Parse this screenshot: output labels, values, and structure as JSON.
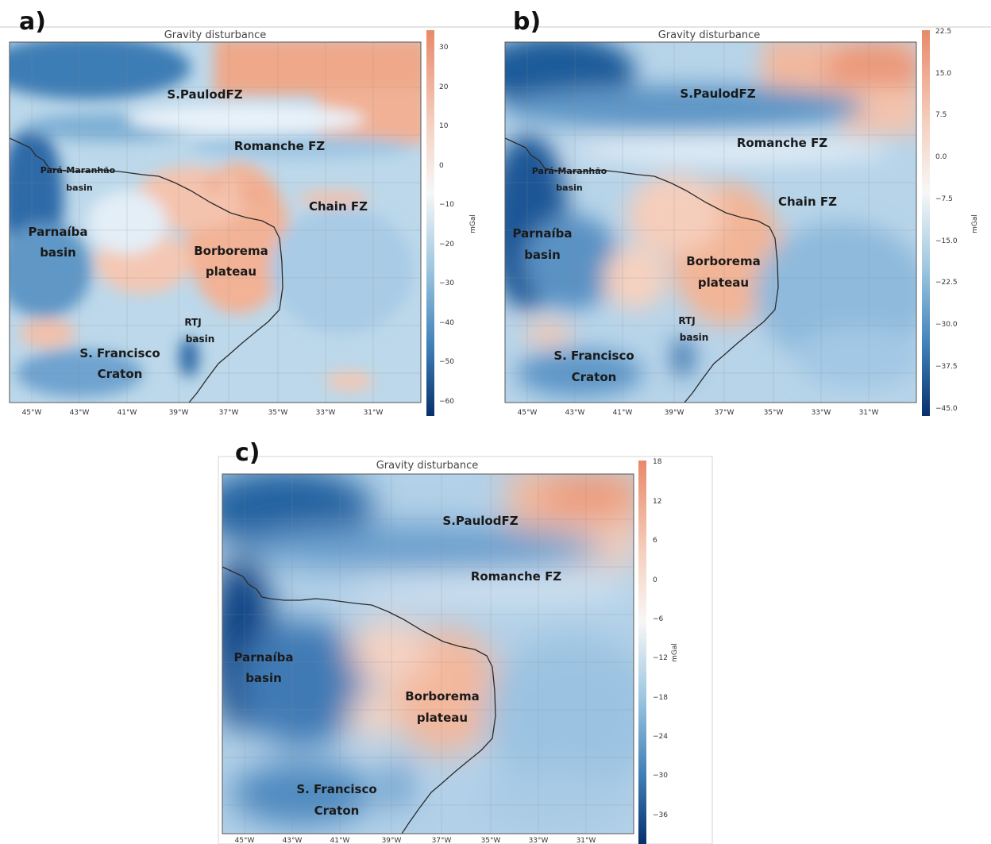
{
  "panels": [
    {
      "letter": "a)",
      "title": "Gravity disturbance",
      "colorbar": {
        "ticks": [
          "30",
          "20",
          "10",
          "0",
          "−10",
          "−20",
          "−30",
          "−40",
          "−50",
          "−60"
        ],
        "unit": "mGal"
      },
      "features": [
        {
          "id": "spfz",
          "text": "S.PaulodFZ"
        },
        {
          "id": "rfz",
          "text": "Romanche FZ"
        },
        {
          "id": "pm1",
          "text": "Pará-Maranhão"
        },
        {
          "id": "pm2",
          "text": "basin"
        },
        {
          "id": "cfz",
          "text": "Chain FZ"
        },
        {
          "id": "pb1",
          "text": "Parnaíba"
        },
        {
          "id": "pb2",
          "text": "basin"
        },
        {
          "id": "bp1",
          "text": "Borborema"
        },
        {
          "id": "bp2",
          "text": "plateau"
        },
        {
          "id": "rtj1",
          "text": "RTJ"
        },
        {
          "id": "rtj2",
          "text": "basin"
        },
        {
          "id": "sf1",
          "text": "S. Francisco"
        },
        {
          "id": "sf2",
          "text": "Craton"
        }
      ]
    },
    {
      "letter": "b)",
      "title": "Gravity disturbance",
      "colorbar": {
        "ticks": [
          "22.5",
          "15.0",
          "7.5",
          "0.0",
          "−7.5",
          "−15.0",
          "−22.5",
          "−30.0",
          "−37.5",
          "−45.0"
        ],
        "unit": "mGal"
      },
      "features": [
        {
          "id": "spfz",
          "text": "S.PaulodFZ"
        },
        {
          "id": "rfz",
          "text": "Romanche FZ"
        },
        {
          "id": "pm1",
          "text": "Pará-Maranhão"
        },
        {
          "id": "pm2",
          "text": "basin"
        },
        {
          "id": "cfz",
          "text": "Chain FZ"
        },
        {
          "id": "pb1",
          "text": "Parnaíba"
        },
        {
          "id": "pb2",
          "text": "basin"
        },
        {
          "id": "bp1",
          "text": "Borborema"
        },
        {
          "id": "bp2",
          "text": "plateau"
        },
        {
          "id": "rtj1",
          "text": "RTJ"
        },
        {
          "id": "rtj2",
          "text": "basin"
        },
        {
          "id": "sf1",
          "text": "S. Francisco"
        },
        {
          "id": "sf2",
          "text": "Craton"
        }
      ]
    },
    {
      "letter": "c)",
      "title": "Gravity disturbance",
      "colorbar": {
        "ticks": [
          "18",
          "12",
          "6",
          "0",
          "−6",
          "−12",
          "−18",
          "−24",
          "−30",
          "−36"
        ],
        "unit": "mGal"
      },
      "features": [
        {
          "id": "spfz",
          "text": "S.PaulodFZ"
        },
        {
          "id": "rfz",
          "text": "Romanche FZ"
        },
        {
          "id": "pb1",
          "text": "Parnaíba"
        },
        {
          "id": "pb2",
          "text": "basin"
        },
        {
          "id": "bp1",
          "text": "Borborema"
        },
        {
          "id": "bp2",
          "text": "plateau"
        },
        {
          "id": "sf1",
          "text": "S. Francisco"
        },
        {
          "id": "sf2",
          "text": "Craton"
        }
      ]
    }
  ],
  "lon_ticks": [
    "45°W",
    "43°W",
    "41°W",
    "39°W",
    "37°W",
    "35°W",
    "33°W",
    "31°W"
  ],
  "colormap": {
    "low": "#08306b",
    "mid": "#f7f7f7",
    "high": "#e8896a"
  }
}
